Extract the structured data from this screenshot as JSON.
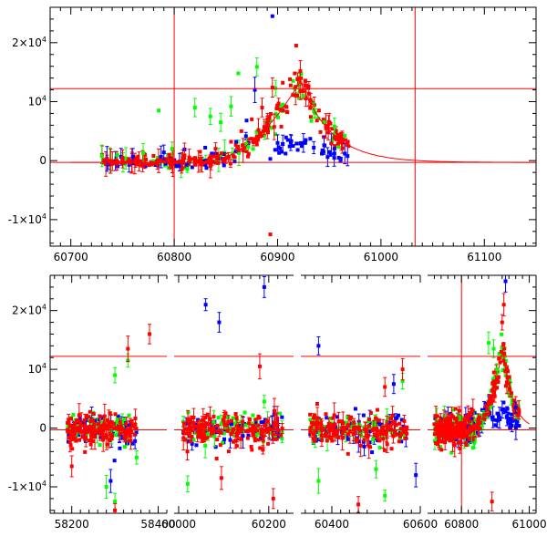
{
  "chart_data": [
    {
      "type": "scatter",
      "title": "",
      "xlabel": "",
      "ylabel": "",
      "xlim": [
        60680,
        61150
      ],
      "ylim": [
        -14500,
        26000
      ],
      "x_ticks": [
        {
          "value": 60700,
          "label": "60700"
        },
        {
          "value": 60800,
          "label": "60800"
        },
        {
          "value": 60900,
          "label": "60900"
        },
        {
          "value": 61000,
          "label": "61000"
        },
        {
          "value": 61100,
          "label": "61100"
        }
      ],
      "y_ticks": [
        {
          "value": -10000,
          "label": "-1×10",
          "exp": "4"
        },
        {
          "value": 0,
          "label": "0",
          "exp": ""
        },
        {
          "value": 10000,
          "label": "10",
          "exp": "4"
        },
        {
          "value": 20000,
          "label": "2×10",
          "exp": "4"
        }
      ],
      "reference_lines": {
        "horizontal": [
          12200,
          -300
        ],
        "vertical": [
          60800,
          61033
        ]
      },
      "model_curve": {
        "peak_x": 60922,
        "peak_y": 13500,
        "rise_x0": 60820,
        "base_y": -300,
        "decay_days": 30,
        "end_x": 61150
      },
      "series": [
        {
          "name": "blue",
          "color": "#0000ff",
          "points": [
            [
              60735,
              300
            ],
            [
              60760,
              700
            ],
            [
              60790,
              1400
            ],
            [
              60810,
              1900
            ],
            [
              60830,
              2200
            ],
            [
              60840,
              1200
            ],
            [
              60860,
              3200
            ],
            [
              60870,
              6800
            ],
            [
              60878,
              12000
            ],
            [
              60895,
              24500
            ],
            [
              60900,
              3000
            ],
            [
              60905,
              2800
            ],
            [
              60910,
              3500
            ],
            [
              60915,
              2500
            ],
            [
              60925,
              3000
            ],
            [
              60935,
              2200
            ],
            [
              60945,
              2600
            ],
            [
              60955,
              2000
            ],
            [
              60965,
              1200
            ]
          ]
        },
        {
          "name": "green",
          "color": "#00ff00",
          "points": [
            [
              60730,
              800
            ],
            [
              60745,
              1000
            ],
            [
              60770,
              1300
            ],
            [
              60785,
              8500
            ],
            [
              60798,
              2000
            ],
            [
              60820,
              9000
            ],
            [
              60835,
              7500
            ],
            [
              60845,
              6500
            ],
            [
              60855,
              9200
            ],
            [
              60862,
              14800
            ],
            [
              60870,
              2800
            ],
            [
              60880,
              15900
            ],
            [
              60898,
              12300
            ],
            [
              60905,
              9500
            ],
            [
              60915,
              13500
            ],
            [
              60925,
              11000
            ],
            [
              60935,
              8500
            ],
            [
              60945,
              6500
            ],
            [
              60955,
              5800
            ],
            [
              60965,
              4200
            ]
          ]
        },
        {
          "name": "red",
          "color": "#ff0000",
          "points": [
            [
              60735,
              200
            ],
            [
              60750,
              500
            ],
            [
              60765,
              700
            ],
            [
              60780,
              800
            ],
            [
              60795,
              1000
            ],
            [
              60810,
              900
            ],
            [
              60825,
              1500
            ],
            [
              60840,
              2000
            ],
            [
              60855,
              3200
            ],
            [
              60865,
              5000
            ],
            [
              60875,
              7000
            ],
            [
              60885,
              9000
            ],
            [
              60895,
              12400
            ],
            [
              60905,
              13200
            ],
            [
              60912,
              13800
            ],
            [
              60918,
              19500
            ],
            [
              60922,
              15200
            ],
            [
              60930,
              12600
            ],
            [
              60940,
              8500
            ],
            [
              60950,
              6500
            ],
            [
              60960,
              4000
            ],
            [
              60968,
              3200
            ],
            [
              60893,
              -12500
            ]
          ]
        }
      ]
    },
    {
      "type": "scatter",
      "title": "",
      "xlabel": "",
      "ylabel": "",
      "broken_axis": true,
      "ylim": [
        -14500,
        26000
      ],
      "segments": [
        {
          "xlim": [
            58150,
            58420
          ],
          "ticks": [
            {
              "value": 58200,
              "label": "58200"
            },
            {
              "value": 58400,
              "label": "58400"
            }
          ],
          "center": 58270,
          "spread": 80
        },
        {
          "xlim": [
            59990,
            60255
          ],
          "ticks": [
            {
              "value": 60000,
              "label": "60000"
            },
            {
              "value": 60200,
              "label": "60200"
            }
          ],
          "center": 60120,
          "spread": 110
        },
        {
          "xlim": [
            60330,
            60600
          ],
          "ticks": [
            {
              "value": 60400,
              "label": "60400"
            },
            {
              "value": 60600,
              "label": "60600"
            }
          ],
          "center": 60460,
          "spread": 110
        },
        {
          "xlim": [
            60700,
            61020
          ],
          "ticks": [
            {
              "value": 60800,
              "label": "60800"
            },
            {
              "value": 61000,
              "label": "61000"
            }
          ],
          "center": 60780,
          "spread": 60
        }
      ],
      "y_ticks": [
        {
          "value": -10000,
          "label": "-1×10",
          "exp": "4"
        },
        {
          "value": 0,
          "label": "0",
          "exp": ""
        },
        {
          "value": 10000,
          "label": "10",
          "exp": "4"
        },
        {
          "value": 20000,
          "label": "2×10",
          "exp": "4"
        }
      ],
      "reference_lines": {
        "horizontal": [
          12200,
          -300
        ],
        "vertical": [
          60800
        ]
      },
      "model_curve": {
        "peak_x": 60922,
        "peak_y": 13500,
        "rise_x0": 60820,
        "base_y": -300,
        "decay_days": 30,
        "end_x": 61000
      },
      "outliers": [
        {
          "name": "blue",
          "color": "#0000ff",
          "points": [
            [
              60060,
              21000
            ],
            [
              60090,
              18000
            ],
            [
              60190,
              24000
            ],
            [
              60370,
              14000
            ],
            [
              60540,
              7500
            ],
            [
              60590,
              -8000
            ],
            [
              60930,
              25000
            ],
            [
              60960,
              3500
            ],
            [
              58290,
              -9000
            ]
          ]
        },
        {
          "name": "green",
          "color": "#00ff00",
          "points": [
            [
              58280,
              -10000
            ],
            [
              58300,
              -12500
            ],
            [
              58330,
              11500
            ],
            [
              58350,
              -5000
            ],
            [
              60020,
              -9500
            ],
            [
              60190,
              4500
            ],
            [
              60370,
              -9000
            ],
            [
              60500,
              -7000
            ],
            [
              60520,
              -11500
            ],
            [
              60560,
              8000
            ],
            [
              60880,
              14500
            ],
            [
              60895,
              13500
            ],
            [
              60905,
              10000
            ],
            [
              58300,
              9000
            ]
          ]
        },
        {
          "name": "red",
          "color": "#ff0000",
          "points": [
            [
              58330,
              13500
            ],
            [
              58380,
              16000
            ],
            [
              58300,
              -14000
            ],
            [
              58200,
              -6500
            ],
            [
              60095,
              -8500
            ],
            [
              60210,
              -12000
            ],
            [
              60180,
              10500
            ],
            [
              60460,
              -13000
            ],
            [
              60520,
              7000
            ],
            [
              60560,
              10000
            ],
            [
              60920,
              18000
            ],
            [
              60925,
              21000
            ],
            [
              60890,
              -12500
            ]
          ]
        }
      ],
      "cluster_series_colors": [
        "#0000ff",
        "#00ff00",
        "#ff0000"
      ]
    }
  ]
}
